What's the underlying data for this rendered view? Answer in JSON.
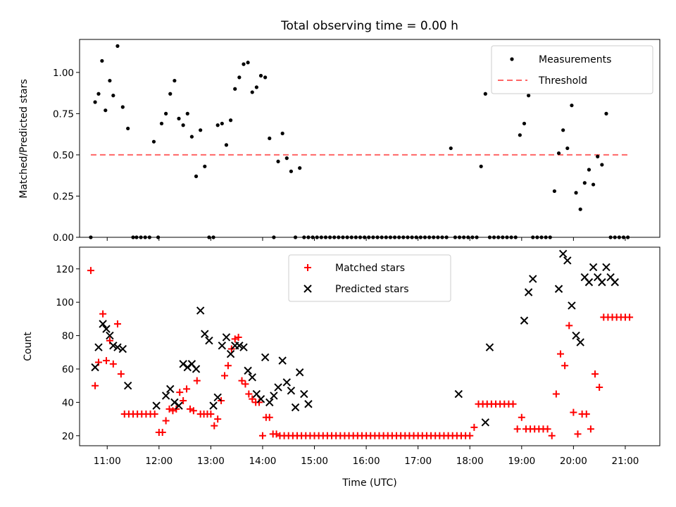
{
  "title": "Total observing time = 0.00 h",
  "colors": {
    "measurement": "#000000",
    "threshold": "#ff6666",
    "matched": "#ff0000",
    "predicted": "#000000"
  },
  "chart_data": [
    {
      "type": "scatter",
      "ylabel": "Matched/Predicted stars",
      "xlim": [
        "10:28",
        "21:40"
      ],
      "ylim": [
        0,
        1.2
      ],
      "yticks": [
        0.0,
        0.25,
        0.5,
        0.75,
        1.0
      ],
      "ytick_labels": [
        "0.00",
        "0.25",
        "0.50",
        "0.75",
        "1.00"
      ],
      "legend_position": "upper right",
      "legend": [
        {
          "label": "Measurements",
          "marker": "dot"
        },
        {
          "label": "Threshold",
          "marker": "dashed-line"
        }
      ],
      "threshold": {
        "value": 0.5,
        "x_start": "10:41",
        "x_end": "21:05"
      },
      "series": [
        {
          "name": "Measurements",
          "x": [
            "10:41",
            "10:46",
            "10:50",
            "10:54",
            "10:58",
            "11:03",
            "11:07",
            "11:12",
            "11:18",
            "11:24",
            "11:30",
            "11:34",
            "11:39",
            "11:44",
            "11:49",
            "11:54",
            "11:59",
            "12:03",
            "12:08",
            "12:13",
            "12:18",
            "12:23",
            "12:28",
            "12:33",
            "12:38",
            "12:43",
            "12:48",
            "12:53",
            "12:58",
            "13:03",
            "13:08",
            "13:13",
            "13:18",
            "13:23",
            "13:28",
            "13:33",
            "13:38",
            "13:43",
            "13:48",
            "13:53",
            "13:58",
            "14:03",
            "14:08",
            "14:13",
            "14:18",
            "14:23",
            "14:28",
            "14:33",
            "14:38",
            "14:43",
            "14:48",
            "14:53",
            "14:58",
            "15:03",
            "15:08",
            "15:13",
            "15:18",
            "15:23",
            "15:28",
            "15:33",
            "15:38",
            "15:43",
            "15:48",
            "15:53",
            "15:58",
            "16:03",
            "16:08",
            "16:13",
            "16:18",
            "16:23",
            "16:28",
            "16:33",
            "16:38",
            "16:43",
            "16:48",
            "16:53",
            "16:58",
            "17:03",
            "17:08",
            "17:13",
            "17:18",
            "17:23",
            "17:28",
            "17:33",
            "17:38",
            "17:43",
            "17:48",
            "17:53",
            "17:58",
            "18:03",
            "18:08",
            "18:13",
            "18:18",
            "18:23",
            "18:28",
            "18:33",
            "18:38",
            "18:43",
            "18:48",
            "18:53",
            "18:58",
            "19:03",
            "19:08",
            "19:13",
            "19:18",
            "19:23",
            "19:28",
            "19:33",
            "19:38",
            "19:43",
            "19:48",
            "19:53",
            "19:58",
            "20:03",
            "20:08",
            "20:13",
            "20:18",
            "20:23",
            "20:28",
            "20:33",
            "20:38",
            "20:43",
            "20:48",
            "20:53",
            "20:58",
            "21:03"
          ],
          "y": [
            0.0,
            0.82,
            0.87,
            1.07,
            0.77,
            0.95,
            0.86,
            1.16,
            0.79,
            0.66,
            0.0,
            0.0,
            0.0,
            0.0,
            0.0,
            0.58,
            0.0,
            0.69,
            0.75,
            0.87,
            0.95,
            0.72,
            0.68,
            0.75,
            0.61,
            0.37,
            0.65,
            0.43,
            0.0,
            0.0,
            0.68,
            0.69,
            0.56,
            0.71,
            0.9,
            0.97,
            1.05,
            1.06,
            0.88,
            0.91,
            0.98,
            0.97,
            0.6,
            0.0,
            0.46,
            0.63,
            0.48,
            0.4,
            0.0,
            0.42,
            0.0,
            0.0,
            0.0,
            0.0,
            0.0,
            0.0,
            0.0,
            0.0,
            0.0,
            0.0,
            0.0,
            0.0,
            0.0,
            0.0,
            0.0,
            0.0,
            0.0,
            0.0,
            0.0,
            0.0,
            0.0,
            0.0,
            0.0,
            0.0,
            0.0,
            0.0,
            0.0,
            0.0,
            0.0,
            0.0,
            0.0,
            0.0,
            0.0,
            0.0,
            0.54,
            0.0,
            0.0,
            0.0,
            0.0,
            0.0,
            0.0,
            0.43,
            0.87,
            0.0,
            0.0,
            0.0,
            0.0,
            0.0,
            0.0,
            0.0,
            0.62,
            0.69,
            0.86,
            0.0,
            0.0,
            0.0,
            0.0,
            0.0,
            0.28,
            0.51,
            0.65,
            0.54,
            0.8,
            0.27,
            0.17,
            0.33,
            0.41,
            0.32,
            0.49,
            0.44,
            0.75,
            0.0,
            0.0,
            0.0,
            0.0,
            0.0
          ]
        }
      ]
    },
    {
      "type": "scatter",
      "xlabel": "Time (UTC)",
      "ylabel": "Count",
      "xlim": [
        "10:28",
        "21:40"
      ],
      "xticks": [
        "11:00",
        "12:00",
        "13:00",
        "14:00",
        "15:00",
        "16:00",
        "17:00",
        "18:00",
        "19:00",
        "20:00",
        "21:00"
      ],
      "ylim": [
        14,
        133
      ],
      "yticks": [
        20,
        40,
        60,
        80,
        100,
        120
      ],
      "legend_position": "upper center",
      "legend": [
        {
          "label": "Matched stars",
          "marker": "plus"
        },
        {
          "label": "Predicted stars",
          "marker": "x"
        }
      ],
      "series": [
        {
          "name": "Matched stars",
          "x": [
            "10:41",
            "10:46",
            "10:50",
            "10:55",
            "10:59",
            "11:03",
            "11:07",
            "11:12",
            "11:16",
            "11:20",
            "11:25",
            "11:30",
            "11:35",
            "11:40",
            "11:45",
            "11:50",
            "11:55",
            "12:00",
            "12:04",
            "12:08",
            "12:12",
            "12:16",
            "12:20",
            "12:24",
            "12:28",
            "12:32",
            "12:36",
            "12:40",
            "12:44",
            "12:48",
            "12:52",
            "12:56",
            "13:00",
            "13:04",
            "13:08",
            "13:12",
            "13:16",
            "13:20",
            "13:24",
            "13:28",
            "13:32",
            "13:36",
            "13:40",
            "13:44",
            "13:48",
            "13:52",
            "13:56",
            "14:00",
            "14:04",
            "14:08",
            "14:12",
            "14:16",
            "14:20",
            "14:25",
            "14:30",
            "14:35",
            "14:40",
            "14:45",
            "14:50",
            "14:55",
            "15:00",
            "15:05",
            "15:10",
            "15:15",
            "15:20",
            "15:25",
            "15:30",
            "15:35",
            "15:40",
            "15:45",
            "15:50",
            "15:55",
            "16:00",
            "16:05",
            "16:10",
            "16:15",
            "16:20",
            "16:25",
            "16:30",
            "16:35",
            "16:40",
            "16:45",
            "16:50",
            "16:55",
            "17:00",
            "17:05",
            "17:10",
            "17:15",
            "17:20",
            "17:25",
            "17:30",
            "17:35",
            "17:40",
            "17:45",
            "17:50",
            "17:55",
            "18:00",
            "18:05",
            "18:10",
            "18:15",
            "18:20",
            "18:25",
            "18:30",
            "18:35",
            "18:40",
            "18:45",
            "18:50",
            "18:55",
            "19:00",
            "19:05",
            "19:10",
            "19:15",
            "19:20",
            "19:25",
            "19:30",
            "19:35",
            "19:40",
            "19:45",
            "19:50",
            "19:55",
            "20:00",
            "20:05",
            "20:10",
            "20:15",
            "20:20",
            "20:25",
            "20:30",
            "20:35",
            "20:40",
            "20:45",
            "20:50",
            "20:55",
            "21:00",
            "21:05"
          ],
          "y": [
            119,
            50,
            64,
            93,
            65,
            77,
            63,
            87,
            57,
            33,
            33,
            33,
            33,
            33,
            33,
            33,
            33,
            22,
            22,
            29,
            36,
            35,
            36,
            46,
            41,
            48,
            36,
            35,
            53,
            33,
            33,
            33,
            33,
            26,
            30,
            41,
            56,
            62,
            72,
            78,
            79,
            53,
            51,
            45,
            42,
            40,
            40,
            20,
            31,
            31,
            21,
            21,
            20,
            20,
            20,
            20,
            20,
            20,
            20,
            20,
            20,
            20,
            20,
            20,
            20,
            20,
            20,
            20,
            20,
            20,
            20,
            20,
            20,
            20,
            20,
            20,
            20,
            20,
            20,
            20,
            20,
            20,
            20,
            20,
            20,
            20,
            20,
            20,
            20,
            20,
            20,
            20,
            20,
            20,
            20,
            20,
            20,
            25,
            39,
            39,
            39,
            39,
            39,
            39,
            39,
            39,
            39,
            24,
            31,
            24,
            24,
            24,
            24,
            24,
            24,
            20,
            45,
            69,
            62,
            86,
            34,
            21,
            33,
            33,
            24,
            57,
            49,
            91,
            91,
            91,
            91,
            91,
            91,
            91
          ]
        },
        {
          "name": "Predicted stars",
          "x": [
            "10:46",
            "10:50",
            "10:55",
            "10:59",
            "11:03",
            "11:07",
            "11:12",
            "11:18",
            "11:24",
            "11:57",
            "12:08",
            "12:13",
            "12:18",
            "12:23",
            "12:28",
            "12:33",
            "12:38",
            "12:43",
            "12:48",
            "12:53",
            "12:58",
            "13:03",
            "13:08",
            "13:13",
            "13:18",
            "13:23",
            "13:28",
            "13:33",
            "13:38",
            "13:43",
            "13:48",
            "13:53",
            "13:58",
            "14:03",
            "14:08",
            "14:13",
            "14:18",
            "14:23",
            "14:28",
            "14:33",
            "14:38",
            "14:43",
            "14:48",
            "14:53",
            "17:47",
            "18:18",
            "18:23",
            "19:03",
            "19:08",
            "19:13",
            "19:43",
            "19:48",
            "19:53",
            "19:58",
            "20:03",
            "20:08",
            "20:13",
            "20:18",
            "20:23",
            "20:28",
            "20:33",
            "20:38",
            "20:43",
            "20:48"
          ],
          "y": [
            61,
            73,
            87,
            84,
            80,
            74,
            73,
            72,
            50,
            38,
            44,
            48,
            40,
            38,
            63,
            61,
            63,
            60,
            95,
            81,
            77,
            38,
            43,
            74,
            79,
            69,
            74,
            74,
            73,
            59,
            55,
            45,
            42,
            67,
            40,
            44,
            49,
            65,
            52,
            47,
            37,
            58,
            45,
            39,
            45,
            28,
            73,
            89,
            106,
            114,
            108,
            129,
            125,
            98,
            80,
            76,
            115,
            112,
            121,
            115,
            112,
            121,
            115,
            112
          ]
        }
      ]
    }
  ]
}
